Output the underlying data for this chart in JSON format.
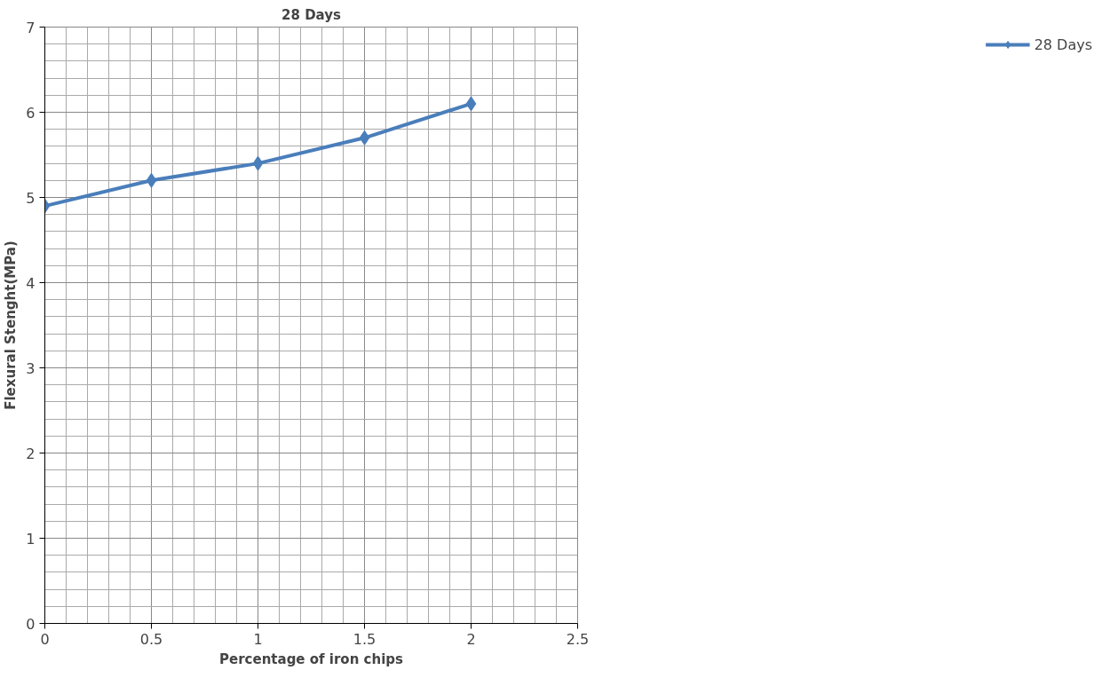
{
  "chart_data": {
    "type": "line",
    "title": "28 Days",
    "xlabel": "Percentage of iron chips",
    "ylabel": "Flexural Stenght(MPa)",
    "x": [
      0,
      0.5,
      1,
      1.5,
      2
    ],
    "series": [
      {
        "name": "28 Days",
        "color": "#4a7ebb",
        "values": [
          4.9,
          5.2,
          5.4,
          5.7,
          6.1
        ]
      }
    ],
    "xlim": [
      0,
      2.5
    ],
    "xticks": [
      0,
      0.5,
      1,
      1.5,
      2,
      2.5
    ],
    "ylim": [
      0,
      7
    ],
    "yticks": [
      0,
      1,
      2,
      3,
      4,
      5,
      6,
      7
    ],
    "grid": true,
    "legend": "right",
    "marker": "diamond",
    "line_style": "solid"
  }
}
